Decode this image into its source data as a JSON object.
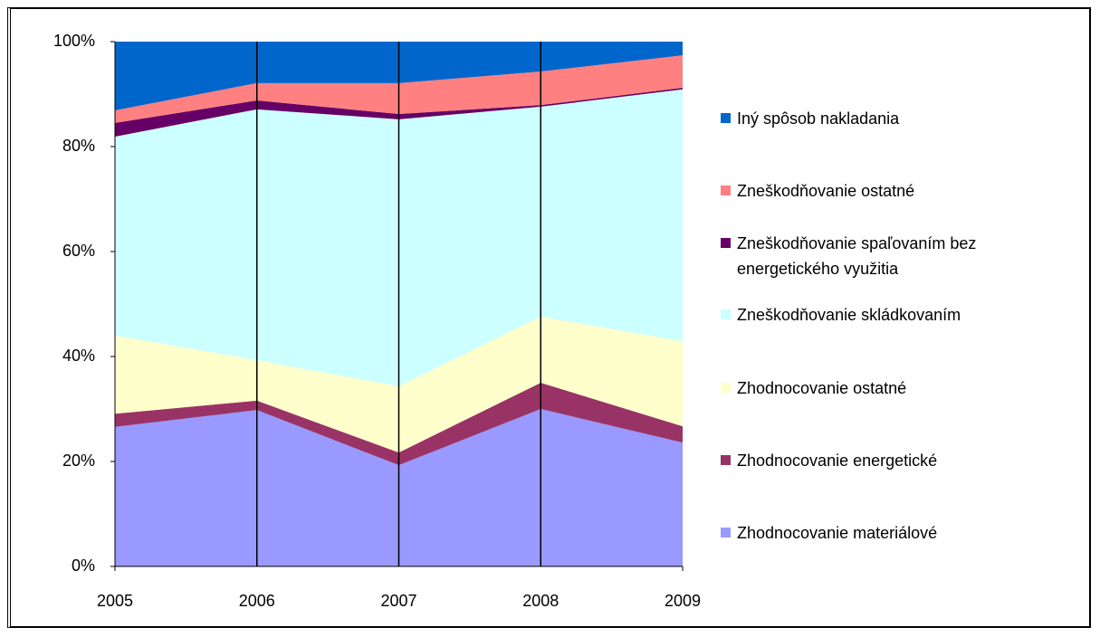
{
  "chart_data": {
    "type": "stacked_area",
    "x": [
      2005,
      2006,
      2007,
      2008,
      2009
    ],
    "xlim": [
      2005,
      2009
    ],
    "xticks": [
      2005,
      2006,
      2007,
      2008,
      2009
    ],
    "ylim": [
      0,
      100
    ],
    "yticks": [
      {
        "value": 0,
        "label": "0%"
      },
      {
        "value": 20,
        "label": "20%"
      },
      {
        "value": 40,
        "label": "40%"
      },
      {
        "value": 60,
        "label": "60%"
      },
      {
        "value": 80,
        "label": "80%"
      },
      {
        "value": 100,
        "label": "100%"
      }
    ],
    "legend": "right",
    "series": [
      {
        "name": "Zhodnocovanie materiálové",
        "color": "#9999ff",
        "values": [
          26.6,
          29.8,
          19.3,
          30.0,
          23.6
        ]
      },
      {
        "name": "Zhodnocovanie energetické",
        "color": "#993366",
        "values": [
          2.5,
          1.8,
          2.4,
          5.0,
          3.1
        ]
      },
      {
        "name": "Zhodnocovanie ostatné",
        "color": "#ffffcc",
        "values": [
          14.9,
          7.7,
          12.6,
          12.6,
          16.2
        ]
      },
      {
        "name": "Zneškodňovanie skládkovaním",
        "color": "#ccffff",
        "values": [
          37.9,
          47.8,
          50.9,
          40.0,
          48.0
        ]
      },
      {
        "name": "Zneškodňovanie spaľovaním bez energetického využitia",
        "color": "#660066",
        "values": [
          2.6,
          1.7,
          1.0,
          0.3,
          0.3
        ]
      },
      {
        "name": "Zneškodňovanie ostatné",
        "color": "#ff8080",
        "values": [
          2.4,
          3.3,
          5.9,
          6.4,
          6.2
        ]
      },
      {
        "name": "Iný spôsob nakladania",
        "color": "#0066cc",
        "values": [
          13.1,
          7.9,
          7.9,
          5.7,
          2.6
        ]
      }
    ]
  }
}
